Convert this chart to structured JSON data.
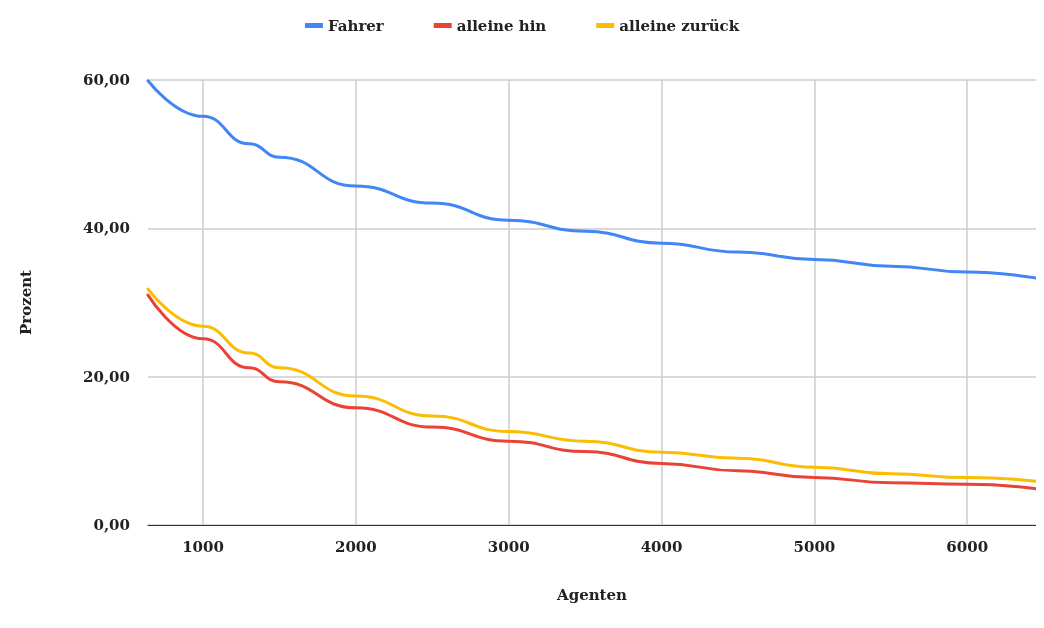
{
  "chart_data": {
    "type": "line",
    "xlabel": "Agenten",
    "ylabel": "Prozent",
    "x": [
      640,
      1000,
      1300,
      1500,
      2000,
      2500,
      3000,
      3500,
      4000,
      4500,
      5000,
      5500,
      6000,
      6450
    ],
    "series": [
      {
        "name": "Fahrer",
        "color": "#4285f4",
        "values": [
          59.9,
          55.1,
          51.4,
          49.6,
          45.7,
          43.4,
          41.1,
          39.6,
          38.0,
          36.8,
          35.8,
          34.9,
          34.1,
          33.3
        ]
      },
      {
        "name": "alleine hin",
        "color": "#ea4335",
        "values": [
          31.0,
          25.1,
          21.2,
          19.3,
          15.8,
          13.2,
          11.3,
          9.9,
          8.3,
          7.3,
          6.4,
          5.7,
          5.5,
          4.9
        ]
      },
      {
        "name": "alleine zurück",
        "color": "#fbbc04",
        "values": [
          31.8,
          26.8,
          23.2,
          21.2,
          17.4,
          14.7,
          12.6,
          11.3,
          9.8,
          9.0,
          7.8,
          6.9,
          6.4,
          5.9
        ]
      }
    ],
    "xlim": [
      640,
      6450
    ],
    "xticks": [
      1000,
      2000,
      3000,
      4000,
      5000,
      6000
    ],
    "ylim": [
      0,
      60
    ],
    "yticks": [
      {
        "value": 0,
        "label": "0,00"
      },
      {
        "value": 20,
        "label": "20,00"
      },
      {
        "value": 40,
        "label": "40,00"
      },
      {
        "value": 60,
        "label": "60,00"
      }
    ],
    "grid": true,
    "legend": "top",
    "marker": "none",
    "line_style": "solid"
  }
}
